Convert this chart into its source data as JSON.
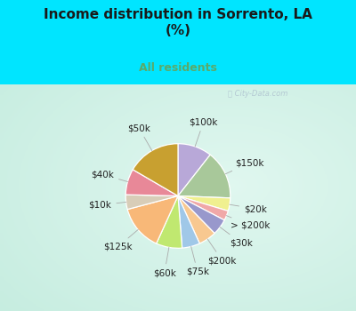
{
  "title": "Income distribution in Sorrento, LA\n(%)",
  "subtitle": "All residents",
  "title_color": "#1a1a1a",
  "subtitle_color": "#5aaa6a",
  "background_color": "#00e5ff",
  "chart_bg_left": "#b0e8d8",
  "chart_bg_right": "#e8f8f8",
  "watermark": "City-Data.com",
  "slices": [
    {
      "label": "$100k",
      "value": 10.5,
      "color": "#b8a8d8"
    },
    {
      "label": "$150k",
      "value": 15.0,
      "color": "#a8c89a"
    },
    {
      "label": "$20k",
      "value": 4.0,
      "color": "#f0f090"
    },
    {
      "label": "> $200k",
      "value": 3.0,
      "color": "#f0a8a8"
    },
    {
      "label": "$30k",
      "value": 5.0,
      "color": "#9898cc"
    },
    {
      "label": "$200k",
      "value": 5.5,
      "color": "#f8c890"
    },
    {
      "label": "$75k",
      "value": 5.5,
      "color": "#a0c8e8"
    },
    {
      "label": "$60k",
      "value": 8.0,
      "color": "#c0e870"
    },
    {
      "label": "$125k",
      "value": 14.0,
      "color": "#f8b878"
    },
    {
      "label": "$10k",
      "value": 4.5,
      "color": "#d8cdb8"
    },
    {
      "label": "$40k",
      "value": 8.0,
      "color": "#e88898"
    },
    {
      "label": "$50k",
      "value": 16.5,
      "color": "#c8a030"
    }
  ],
  "label_color": "#222222",
  "label_fontsize": 7.5,
  "figsize": [
    4.0,
    3.5
  ],
  "dpi": 100
}
